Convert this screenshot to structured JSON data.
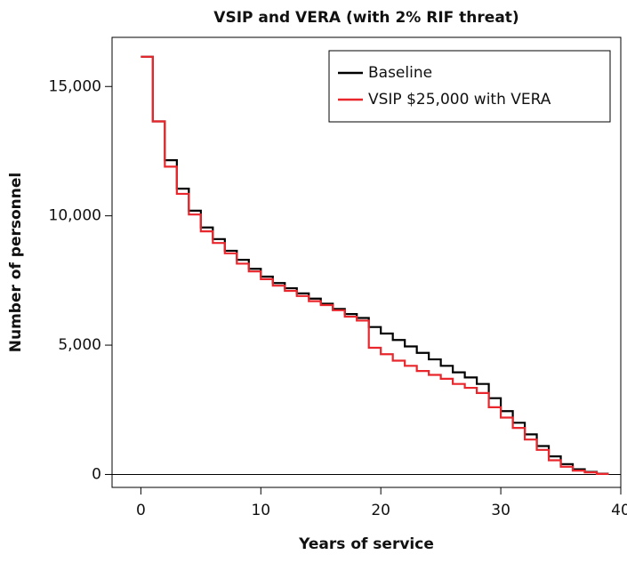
{
  "chart_data": {
    "type": "step",
    "title": "VSIP and VERA (with 2% RIF threat)",
    "x_label": "Years of service",
    "y_label": "Number of personnel",
    "x": [
      0,
      1,
      2,
      3,
      4,
      5,
      6,
      7,
      8,
      9,
      10,
      11,
      12,
      13,
      14,
      15,
      16,
      17,
      18,
      19,
      20,
      21,
      22,
      23,
      24,
      25,
      26,
      27,
      28,
      29,
      30,
      31,
      32,
      33,
      34,
      35,
      36,
      37,
      38
    ],
    "series": [
      {
        "name": "Baseline",
        "color": "#000000",
        "values": [
          16150,
          13650,
          12150,
          11050,
          10200,
          9550,
          9100,
          8650,
          8300,
          7950,
          7650,
          7400,
          7200,
          7000,
          6800,
          6600,
          6400,
          6200,
          6050,
          5700,
          5450,
          5200,
          4950,
          4700,
          4450,
          4200,
          3950,
          3750,
          3500,
          2950,
          2450,
          2000,
          1550,
          1100,
          700,
          400,
          200,
          100,
          30
        ]
      },
      {
        "name": "VSIP $25,000 with VERA",
        "color": "#e8262b",
        "values": [
          16150,
          13650,
          11900,
          10850,
          10050,
          9400,
          8950,
          8550,
          8150,
          7850,
          7550,
          7300,
          7100,
          6900,
          6700,
          6550,
          6350,
          6100,
          5950,
          4900,
          4650,
          4400,
          4200,
          4000,
          3850,
          3700,
          3500,
          3350,
          3150,
          2600,
          2200,
          1800,
          1350,
          950,
          550,
          300,
          150,
          80,
          20
        ]
      }
    ],
    "xlim": [
      -2.4,
      40
    ],
    "ylim": [
      -500,
      16900
    ],
    "xticks": [
      0,
      10,
      20,
      30,
      40
    ],
    "yticks": [
      {
        "value": 0,
        "label": "0"
      },
      {
        "value": 5000,
        "label": "5,000"
      },
      {
        "value": 10000,
        "label": "10,000"
      },
      {
        "value": 15000,
        "label": "15,000"
      }
    ],
    "zero_line": 0,
    "legend": "top-right"
  }
}
